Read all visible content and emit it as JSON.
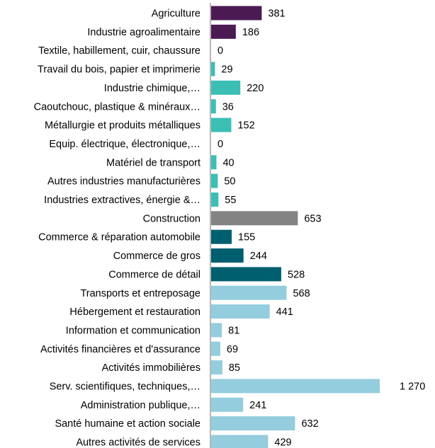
{
  "chart_data": {
    "type": "bar",
    "orientation": "horizontal",
    "title": "",
    "xlabel": "",
    "ylabel": "",
    "xlim": [
      0,
      1270
    ],
    "grid": false,
    "legend": "none",
    "categories": [
      "Agriculture",
      "Industrie agroalimentaire",
      "Textile, habillement, cuir, chaussure",
      "Travail du bois, papier et imprimerie",
      "Industrie chimique,…",
      "Caoutchouc, plastique & minéraux…",
      "Métallurgie et produits métalliques",
      "Equip. électrique, électronique,…",
      "Matériel de transport",
      "Autres industries manufacturières",
      "Industries extractives, énergie &…",
      "Construction",
      "Commerce & réparation automobile",
      "Commerce de gros",
      "Commerce de détail",
      "Transports et entreposage",
      "Hébergement et restauration",
      "Information et communication",
      "Activités financières et d'assurance",
      "Activités immobilières",
      "Serv. scientifiques, techniques,…",
      "Administration publique,…",
      "Santé humaine et action sociale",
      "Autres activités de services"
    ],
    "values": [
      381,
      186,
      0,
      29,
      220,
      36,
      152,
      0,
      40,
      50,
      55,
      653,
      155,
      244,
      528,
      568,
      441,
      81,
      69,
      85,
      1270,
      241,
      632,
      429
    ],
    "value_labels": [
      "381",
      "186",
      "0",
      "29",
      "220",
      "36",
      "152",
      "0",
      "40",
      "50",
      "55",
      "653",
      "155",
      "244",
      "528",
      "568",
      "441",
      "81",
      "69",
      "85",
      "1 270",
      "241",
      "632",
      "429"
    ],
    "colors": [
      "#4b1a53",
      "#4b1a53",
      "#3bbfb5",
      "#3bbfb5",
      "#3bbfb5",
      "#3bbfb5",
      "#3bbfb5",
      "#3bbfb5",
      "#3bbfb5",
      "#3bbfb5",
      "#3bbfb5",
      "#838383",
      "#005f6e",
      "#005f6e",
      "#005f6e",
      "#94cddd",
      "#94cddd",
      "#94cddd",
      "#94cddd",
      "#94cddd",
      "#94cddd",
      "#94cddd",
      "#94cddd",
      "#94cddd"
    ]
  }
}
